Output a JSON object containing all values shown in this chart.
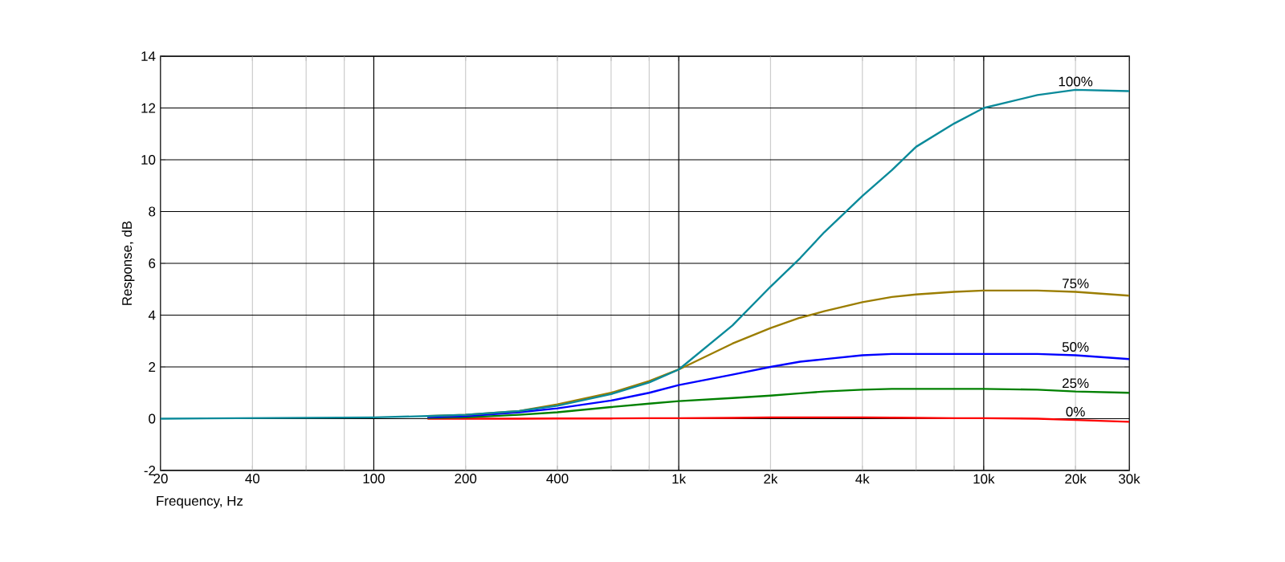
{
  "chart_data": {
    "type": "line",
    "xlabel": "Frequency, Hz",
    "ylabel": "Response, dB",
    "log": "x",
    "grid": true,
    "legend": false,
    "xlim": [
      20,
      30000
    ],
    "ylim": [
      -2,
      14
    ],
    "xticks": [
      20,
      40,
      {
        "value": 60,
        "label": null
      },
      {
        "value": 80,
        "label": null
      },
      100,
      200,
      400,
      {
        "value": 600,
        "label": null
      },
      {
        "value": 800,
        "label": null
      },
      {
        "value": 1000,
        "label": "1k"
      },
      {
        "value": 2000,
        "label": "2k"
      },
      {
        "value": 4000,
        "label": "4k"
      },
      {
        "value": 6000,
        "label": null
      },
      {
        "value": 8000,
        "label": null
      },
      {
        "value": 10000,
        "label": "10k"
      },
      {
        "value": 20000,
        "label": "20k"
      },
      {
        "value": 30000,
        "label": "30k"
      }
    ],
    "yticks": [
      -2,
      0,
      2,
      4,
      6,
      8,
      10,
      12,
      14
    ],
    "x": [
      20,
      100,
      150,
      200,
      300,
      400,
      600,
      800,
      1000,
      1500,
      2000,
      2500,
      3000,
      4000,
      5000,
      6000,
      8000,
      10000,
      15000,
      20000,
      30000
    ],
    "series": [
      {
        "name": "100%",
        "color": "#0a8a9a",
        "values": [
          0,
          0.05,
          0.1,
          0.15,
          0.3,
          0.5,
          0.95,
          1.4,
          1.9,
          3.6,
          5.1,
          6.2,
          7.2,
          8.6,
          9.6,
          10.5,
          11.4,
          12.0,
          12.5,
          12.7,
          12.65
        ]
      },
      {
        "name": "75%",
        "color": "#9b7d00",
        "values": [
          null,
          null,
          0.1,
          0.15,
          0.3,
          0.55,
          1.0,
          1.45,
          1.9,
          2.9,
          3.5,
          3.9,
          4.15,
          4.5,
          4.7,
          4.8,
          4.9,
          4.95,
          4.95,
          4.9,
          4.75
        ]
      },
      {
        "name": "50%",
        "color": "#0000ff",
        "values": [
          null,
          null,
          0.05,
          0.1,
          0.25,
          0.4,
          0.7,
          1.0,
          1.3,
          1.7,
          2.0,
          2.2,
          2.3,
          2.45,
          2.5,
          2.5,
          2.5,
          2.5,
          2.5,
          2.45,
          2.3
        ]
      },
      {
        "name": "25%",
        "color": "#008000",
        "values": [
          null,
          null,
          0.03,
          0.05,
          0.15,
          0.25,
          0.45,
          0.58,
          0.68,
          0.8,
          0.89,
          0.98,
          1.05,
          1.12,
          1.15,
          1.15,
          1.15,
          1.15,
          1.12,
          1.05,
          1.0
        ]
      },
      {
        "name": "0%",
        "color": "#ff0000",
        "values": [
          null,
          null,
          0,
          0,
          0,
          0.01,
          0.01,
          0.02,
          0.02,
          0.03,
          0.05,
          0.05,
          0.05,
          0.05,
          0.04,
          0.03,
          0.02,
          0.02,
          0.0,
          -0.05,
          -0.12
        ]
      }
    ]
  }
}
